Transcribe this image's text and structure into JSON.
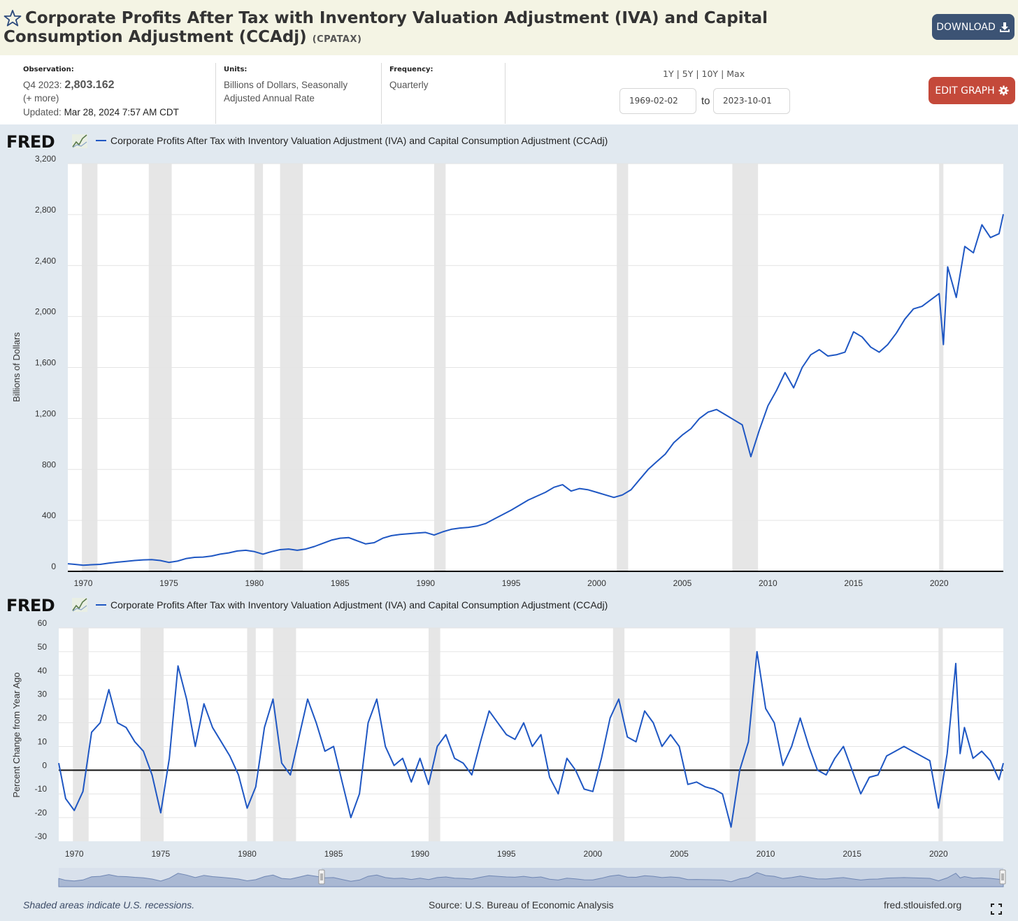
{
  "header": {
    "title": "Corporate Profits After Tax with Inventory Valuation Adjustment (IVA) and Capital Consumption Adjustment (CCAdj)",
    "series_id": "(CPATAX)",
    "download_label": "DOWNLOAD"
  },
  "info": {
    "observation_label": "Observation:",
    "observation_period": "Q4 2023:",
    "observation_value": "2,803.162",
    "more_link": "(+ more)",
    "updated_label": "Updated:",
    "updated_value": "Mar 28, 2024 7:57 AM CDT",
    "units_label": "Units:",
    "units_value": "Billions of Dollars, Seasonally Adjusted Annual Rate",
    "frequency_label": "Frequency:",
    "frequency_value": "Quarterly",
    "range_links": [
      "1Y",
      "5Y",
      "10Y",
      "Max"
    ],
    "start_date": "1969-02-02",
    "to_label": "to",
    "end_date": "2023-10-01",
    "edit_label": "EDIT GRAPH"
  },
  "footer": {
    "recession_note": "Shaded areas indicate U.S. recessions.",
    "source": "Source: U.S. Bureau of Economic Analysis",
    "site": "fred.stlouisfed.org"
  },
  "logo_text": "FRED",
  "colors": {
    "series": "#1f57c3",
    "recession": "#e6e6e6",
    "plot_bg": "#ffffff",
    "page_bg": "#e1e9f0",
    "download_button": "#3c5374",
    "edit_button": "#c4493a",
    "navigator_fill": "#b5c4de"
  },
  "icons": [
    "star-icon",
    "download-icon",
    "gear-icon",
    "fred-chart-icon",
    "fullscreen-icon"
  ],
  "chart_data": [
    {
      "type": "line",
      "legend": "Corporate Profits After Tax with Inventory Valuation Adjustment (IVA) and Capital Consumption Adjustment (CCAdj)",
      "ylabel": "Billions of Dollars",
      "xlim": [
        1969.1,
        2023.75
      ],
      "ylim": [
        0,
        3200
      ],
      "yticks": [
        0,
        400,
        800,
        1200,
        1600,
        2000,
        2400,
        2800,
        3200
      ],
      "ytick_labels": [
        "0",
        "400",
        "800",
        "1,200",
        "1,600",
        "2,000",
        "2,400",
        "2,800",
        "3,200"
      ],
      "xticks": [
        1970,
        1975,
        1980,
        1985,
        1990,
        1995,
        2000,
        2005,
        2010,
        2015,
        2020
      ],
      "recessions": [
        [
          1969.92,
          1970.83
        ],
        [
          1973.83,
          1975.17
        ],
        [
          1980.0,
          1980.5
        ],
        [
          1981.5,
          1982.83
        ],
        [
          1990.5,
          1991.17
        ],
        [
          2001.17,
          2001.83
        ],
        [
          2007.92,
          2009.42
        ],
        [
          2020.0,
          2020.25
        ]
      ],
      "x": [
        1969.1,
        1969.5,
        1970.0,
        1970.5,
        1971.0,
        1971.5,
        1972.0,
        1972.5,
        1973.0,
        1973.5,
        1974.0,
        1974.5,
        1975.0,
        1975.5,
        1976.0,
        1976.5,
        1977.0,
        1977.5,
        1978.0,
        1978.5,
        1979.0,
        1979.5,
        1980.0,
        1980.5,
        1981.0,
        1981.5,
        1982.0,
        1982.5,
        1983.0,
        1983.5,
        1984.0,
        1984.5,
        1985.0,
        1985.5,
        1986.0,
        1986.5,
        1987.0,
        1987.5,
        1988.0,
        1988.5,
        1989.0,
        1989.5,
        1990.0,
        1990.5,
        1991.0,
        1991.5,
        1992.0,
        1992.5,
        1993.0,
        1993.5,
        1994.0,
        1994.5,
        1995.0,
        1995.5,
        1996.0,
        1996.5,
        1997.0,
        1997.5,
        1998.0,
        1998.5,
        1999.0,
        1999.5,
        2000.0,
        2000.5,
        2001.0,
        2001.5,
        2002.0,
        2002.5,
        2003.0,
        2003.5,
        2004.0,
        2004.5,
        2005.0,
        2005.5,
        2006.0,
        2006.5,
        2007.0,
        2007.5,
        2008.0,
        2008.5,
        2009.0,
        2009.5,
        2010.0,
        2010.5,
        2011.0,
        2011.5,
        2012.0,
        2012.5,
        2013.0,
        2013.5,
        2014.0,
        2014.5,
        2015.0,
        2015.5,
        2016.0,
        2016.5,
        2017.0,
        2017.5,
        2018.0,
        2018.5,
        2019.0,
        2019.5,
        2020.0,
        2020.25,
        2020.5,
        2021.0,
        2021.5,
        2022.0,
        2022.5,
        2023.0,
        2023.5,
        2023.75
      ],
      "y": [
        60,
        55,
        48,
        52,
        55,
        65,
        72,
        78,
        85,
        90,
        92,
        85,
        70,
        80,
        100,
        110,
        112,
        120,
        135,
        145,
        160,
        165,
        155,
        135,
        155,
        170,
        175,
        165,
        175,
        195,
        220,
        245,
        260,
        265,
        240,
        215,
        225,
        260,
        280,
        290,
        295,
        300,
        305,
        285,
        310,
        330,
        340,
        345,
        355,
        375,
        410,
        445,
        480,
        520,
        560,
        590,
        620,
        660,
        680,
        630,
        650,
        640,
        620,
        600,
        580,
        600,
        640,
        720,
        800,
        860,
        920,
        1010,
        1070,
        1120,
        1200,
        1250,
        1270,
        1230,
        1190,
        1150,
        900,
        1110,
        1300,
        1420,
        1560,
        1440,
        1600,
        1700,
        1740,
        1690,
        1700,
        1720,
        1880,
        1840,
        1760,
        1720,
        1780,
        1870,
        1980,
        2060,
        2080,
        2130,
        2180,
        1780,
        2390,
        2150,
        2550,
        2500,
        2720,
        2620,
        2650,
        2803.162
      ]
    },
    {
      "type": "line",
      "legend": "Corporate Profits After Tax with Inventory Valuation Adjustment (IVA) and Capital Consumption Adjustment (CCAdj)",
      "ylabel": "Percent Change from Year Ago",
      "xlim": [
        1969.1,
        2023.75
      ],
      "ylim": [
        -30,
        60
      ],
      "yticks": [
        -30,
        -20,
        -10,
        0,
        10,
        20,
        30,
        40,
        50,
        60
      ],
      "xticks": [
        1970,
        1975,
        1980,
        1985,
        1990,
        1995,
        2000,
        2005,
        2010,
        2015,
        2020
      ],
      "recessions": [
        [
          1969.92,
          1970.83
        ],
        [
          1973.83,
          1975.17
        ],
        [
          1980.0,
          1980.5
        ],
        [
          1981.5,
          1982.83
        ],
        [
          1990.5,
          1991.17
        ],
        [
          2001.17,
          2001.83
        ],
        [
          2007.92,
          2009.42
        ],
        [
          2020.0,
          2020.25
        ]
      ],
      "x": [
        1969.1,
        1969.5,
        1970.0,
        1970.5,
        1971.0,
        1971.5,
        1972.0,
        1972.5,
        1973.0,
        1973.5,
        1974.0,
        1974.5,
        1975.0,
        1975.5,
        1976.0,
        1976.5,
        1977.0,
        1977.5,
        1978.0,
        1978.5,
        1979.0,
        1979.5,
        1980.0,
        1980.5,
        1981.0,
        1981.5,
        1982.0,
        1982.5,
        1983.0,
        1983.5,
        1984.0,
        1984.5,
        1985.0,
        1985.5,
        1986.0,
        1986.5,
        1987.0,
        1987.5,
        1988.0,
        1988.5,
        1989.0,
        1989.5,
        1990.0,
        1990.5,
        1991.0,
        1991.5,
        1992.0,
        1992.5,
        1993.0,
        1993.5,
        1994.0,
        1994.5,
        1995.0,
        1995.5,
        1996.0,
        1996.5,
        1997.0,
        1997.5,
        1998.0,
        1998.5,
        1999.0,
        1999.5,
        2000.0,
        2000.5,
        2001.0,
        2001.5,
        2002.0,
        2002.5,
        2003.0,
        2003.5,
        2004.0,
        2004.5,
        2005.0,
        2005.5,
        2006.0,
        2006.5,
        2007.0,
        2007.5,
        2008.0,
        2008.5,
        2009.0,
        2009.5,
        2010.0,
        2010.5,
        2011.0,
        2011.5,
        2012.0,
        2012.5,
        2013.0,
        2013.5,
        2014.0,
        2014.5,
        2015.0,
        2015.5,
        2016.0,
        2016.5,
        2017.0,
        2017.5,
        2018.0,
        2018.5,
        2019.0,
        2019.5,
        2020.0,
        2020.5,
        2021.0,
        2021.25,
        2021.5,
        2022.0,
        2022.5,
        2023.0,
        2023.5,
        2023.75
      ],
      "y": [
        3,
        -12,
        -17,
        -9,
        16,
        20,
        34,
        20,
        18,
        12,
        8,
        -2,
        -18,
        5,
        44,
        30,
        10,
        28,
        18,
        12,
        6,
        -2,
        -16,
        -7,
        18,
        30,
        3,
        -2,
        14,
        30,
        20,
        8,
        10,
        -5,
        -20,
        -10,
        20,
        30,
        10,
        2,
        5,
        -5,
        5,
        -6,
        10,
        15,
        5,
        3,
        -2,
        12,
        25,
        20,
        15,
        13,
        20,
        10,
        15,
        -3,
        -10,
        5,
        0,
        -8,
        -9,
        5,
        22,
        30,
        14,
        12,
        25,
        20,
        10,
        15,
        10,
        -6,
        -5,
        -7,
        -8,
        -10,
        -24,
        0,
        12,
        50,
        26,
        20,
        2,
        10,
        22,
        10,
        0,
        -2,
        5,
        10,
        0,
        -10,
        -3,
        -2,
        6,
        8,
        10,
        8,
        6,
        4,
        -16,
        7,
        45,
        7,
        18,
        5,
        8,
        4,
        -4,
        3
      ]
    }
  ]
}
